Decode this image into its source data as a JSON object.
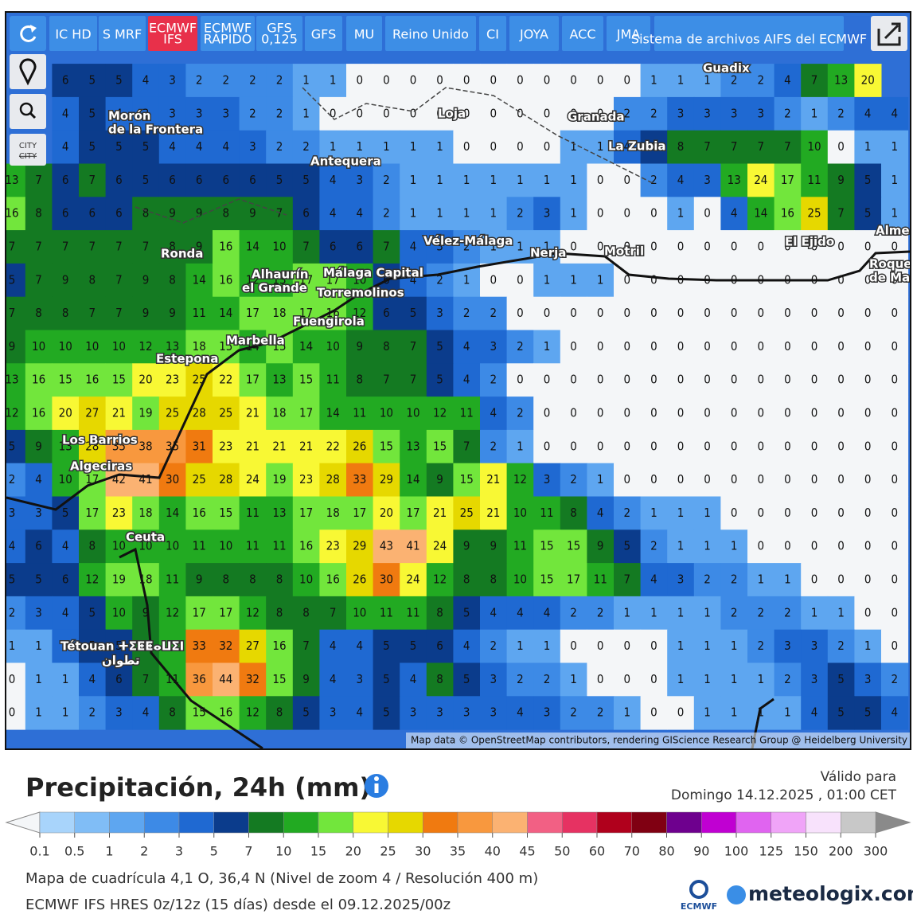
{
  "toolbar": {
    "buttons": [
      [
        "IC HD"
      ],
      [
        "S MRF"
      ],
      [
        "ECMWF",
        "IFS"
      ],
      [
        "ECMWF",
        "RÁPIDO"
      ],
      [
        "GFS",
        "0,125"
      ],
      [
        "GFS"
      ],
      [
        "MU"
      ],
      [
        "Reino Unido"
      ],
      [
        "CI"
      ],
      [
        "JOYA"
      ],
      [
        "ACC"
      ],
      [
        "JMA"
      ],
      [
        "Sistema de archivos AIFS del ECMWF"
      ]
    ],
    "city": "CITY"
  },
  "map": {
    "grid": [
      [
        null,
        null,
        6,
        5,
        5,
        4,
        3,
        2,
        2,
        2,
        2,
        1,
        1,
        0,
        0,
        0,
        0,
        0,
        0,
        0,
        0,
        0,
        0,
        0,
        1,
        1,
        1,
        2,
        2,
        4,
        7,
        13,
        20,
        null
      ],
      [
        null,
        null,
        4,
        5,
        4,
        3,
        3,
        3,
        3,
        2,
        2,
        1,
        0,
        0,
        0,
        0,
        0,
        0,
        0,
        0,
        0,
        0,
        0,
        2,
        2,
        3,
        3,
        3,
        3,
        2,
        1,
        2,
        4,
        4
      ],
      [
        null,
        null,
        4,
        5,
        5,
        5,
        4,
        4,
        4,
        3,
        2,
        2,
        1,
        1,
        1,
        1,
        1,
        0,
        0,
        0,
        0,
        1,
        1,
        4,
        6,
        8,
        7,
        7,
        7,
        7,
        10,
        0,
        1,
        1
      ],
      [
        13,
        7,
        6,
        7,
        6,
        5,
        6,
        6,
        6,
        6,
        5,
        5,
        4,
        3,
        2,
        1,
        1,
        1,
        1,
        1,
        1,
        1,
        0,
        0,
        2,
        4,
        3,
        13,
        24,
        17,
        11,
        9,
        5,
        1
      ],
      [
        16,
        8,
        6,
        6,
        6,
        8,
        9,
        9,
        8,
        9,
        7,
        6,
        4,
        4,
        2,
        1,
        1,
        1,
        1,
        2,
        3,
        1,
        0,
        0,
        0,
        1,
        0,
        4,
        14,
        16,
        25,
        7,
        5,
        1
      ],
      [
        7,
        7,
        7,
        7,
        7,
        7,
        8,
        9,
        16,
        14,
        10,
        7,
        6,
        6,
        7,
        4,
        3,
        2,
        1,
        1,
        1,
        0,
        0,
        0,
        0,
        0,
        0,
        0,
        0,
        0,
        0,
        0,
        0,
        0
      ],
      [
        5,
        7,
        9,
        8,
        7,
        9,
        8,
        14,
        16,
        12,
        13,
        17,
        17,
        10,
        6,
        4,
        2,
        1,
        0,
        0,
        1,
        1,
        1,
        0,
        0,
        0,
        0,
        0,
        0,
        0,
        0,
        0,
        0,
        0
      ],
      [
        7,
        8,
        8,
        7,
        7,
        9,
        9,
        11,
        14,
        17,
        18,
        17,
        16,
        12,
        6,
        5,
        3,
        2,
        2,
        0,
        0,
        0,
        0,
        0,
        0,
        0,
        0,
        0,
        0,
        0,
        0,
        0,
        0,
        0
      ],
      [
        9,
        10,
        10,
        10,
        10,
        12,
        13,
        18,
        15,
        14,
        15,
        14,
        10,
        9,
        8,
        7,
        5,
        4,
        3,
        2,
        1,
        0,
        0,
        0,
        0,
        0,
        0,
        0,
        0,
        0,
        0,
        0,
        0,
        0
      ],
      [
        13,
        16,
        15,
        16,
        15,
        20,
        23,
        25,
        22,
        17,
        13,
        15,
        11,
        8,
        7,
        7,
        5,
        4,
        2,
        0,
        0,
        0,
        0,
        0,
        0,
        0,
        0,
        0,
        0,
        0,
        0,
        0,
        0,
        0
      ],
      [
        12,
        16,
        20,
        27,
        21,
        19,
        25,
        28,
        25,
        21,
        18,
        17,
        14,
        11,
        10,
        10,
        12,
        11,
        4,
        2,
        0,
        0,
        0,
        0,
        0,
        0,
        0,
        0,
        0,
        0,
        0,
        0,
        0,
        0
      ],
      [
        5,
        9,
        13,
        28,
        35,
        38,
        35,
        31,
        23,
        21,
        21,
        21,
        22,
        26,
        15,
        13,
        15,
        7,
        2,
        1,
        0,
        0,
        0,
        0,
        0,
        0,
        0,
        0,
        0,
        0,
        0,
        0,
        0,
        0
      ],
      [
        2,
        4,
        10,
        17,
        42,
        41,
        30,
        25,
        28,
        24,
        19,
        23,
        28,
        33,
        29,
        14,
        9,
        15,
        21,
        12,
        3,
        2,
        1,
        0,
        0,
        0,
        0,
        0,
        0,
        0,
        0,
        0,
        0,
        0
      ],
      [
        3,
        3,
        5,
        17,
        23,
        18,
        14,
        16,
        15,
        11,
        13,
        17,
        18,
        17,
        20,
        17,
        21,
        25,
        21,
        10,
        11,
        8,
        4,
        2,
        1,
        1,
        1,
        0,
        0,
        0,
        0,
        0,
        0,
        0
      ],
      [
        4,
        6,
        4,
        8,
        10,
        10,
        10,
        11,
        10,
        11,
        11,
        16,
        23,
        29,
        43,
        41,
        24,
        9,
        9,
        11,
        15,
        15,
        9,
        5,
        2,
        1,
        1,
        1,
        0,
        0,
        0,
        0,
        0,
        0
      ],
      [
        5,
        5,
        6,
        12,
        19,
        18,
        11,
        9,
        8,
        8,
        8,
        10,
        16,
        26,
        30,
        24,
        12,
        8,
        8,
        10,
        15,
        17,
        11,
        7,
        4,
        3,
        2,
        2,
        1,
        1,
        0,
        0,
        0,
        0
      ],
      [
        2,
        3,
        4,
        5,
        10,
        9,
        12,
        17,
        17,
        12,
        8,
        8,
        7,
        10,
        11,
        11,
        8,
        5,
        4,
        4,
        4,
        2,
        2,
        1,
        1,
        1,
        1,
        2,
        2,
        2,
        1,
        1,
        0,
        0
      ],
      [
        1,
        1,
        3,
        5,
        5,
        9,
        11,
        33,
        32,
        27,
        16,
        7,
        4,
        4,
        5,
        5,
        6,
        4,
        2,
        1,
        1,
        0,
        0,
        0,
        0,
        1,
        1,
        1,
        2,
        3,
        3,
        2,
        1,
        0
      ],
      [
        0,
        1,
        1,
        4,
        6,
        7,
        11,
        36,
        44,
        32,
        15,
        9,
        4,
        3,
        5,
        4,
        8,
        5,
        3,
        2,
        2,
        1,
        0,
        0,
        0,
        1,
        1,
        1,
        1,
        2,
        3,
        5,
        3,
        2
      ],
      [
        0,
        1,
        1,
        2,
        3,
        4,
        8,
        15,
        16,
        12,
        8,
        5,
        3,
        4,
        5,
        3,
        3,
        3,
        3,
        4,
        3,
        2,
        2,
        1,
        0,
        0,
        1,
        1,
        1,
        1,
        4,
        5,
        5,
        4
      ]
    ],
    "places": [
      "Guadix",
      "Morón",
      "de la Frontera",
      "Loja",
      "Granada",
      "La Zubia",
      "Antequera",
      "Ronda",
      "Vélez-Málaga",
      "Nerja",
      "Motril",
      "El Ejido",
      "Alme",
      "Roque",
      "de Ma",
      "Alhaurín",
      "el Grande",
      "Málaga Capital",
      "Torremolinos",
      "Fuengirola",
      "Marbella",
      "Estepona",
      "Los Barrios",
      "Algeciras",
      "Ceuta",
      "Tétouan ⵜⵉⵟⵟⴰⵡⵉⵏ",
      "تطوان"
    ],
    "attribution": "Map data © OpenStreetMap contributors, rendering GIScience Research Group @ Heidelberg University"
  },
  "legend": {
    "title": "Precipitación, 24h (mm)",
    "below_color": "#f4f6f8",
    "above_color": "#8a8a8a",
    "ticks": [
      0.1,
      0.5,
      1,
      2,
      3,
      5,
      7,
      10,
      15,
      20,
      25,
      30,
      35,
      40,
      45,
      50,
      60,
      70,
      80,
      90,
      100,
      125,
      150,
      200,
      300
    ],
    "colors": [
      "#a8d4fb",
      "#80bdf6",
      "#5ea6f0",
      "#3d8ae6",
      "#1f69d2",
      "#0b3c8c",
      "#147a22",
      "#22aa22",
      "#72e63c",
      "#f8f834",
      "#e6d800",
      "#f07a10",
      "#f8983e",
      "#fbb272",
      "#f26084",
      "#e63262",
      "#b0001c",
      "#800012",
      "#6e008e",
      "#c000d2",
      "#e064f0",
      "#f0a4f8",
      "#f8e2fc",
      "#c8c8c8"
    ]
  },
  "footer": {
    "valid_label": "Válido para",
    "valid_date": "Domingo 14.12.2025 , 01:00 CET",
    "grid_info": "Mapa de cuadrícula 4,1 O, 36,4 N (Nivel de zoom 4 / Resolución 400 m)",
    "model_info": "ECMWF IFS HRES 0z/12z (15 días) desde el 09.12.2025/00z",
    "ecmwf": "ECMWF",
    "brand": "meteologix.com"
  }
}
